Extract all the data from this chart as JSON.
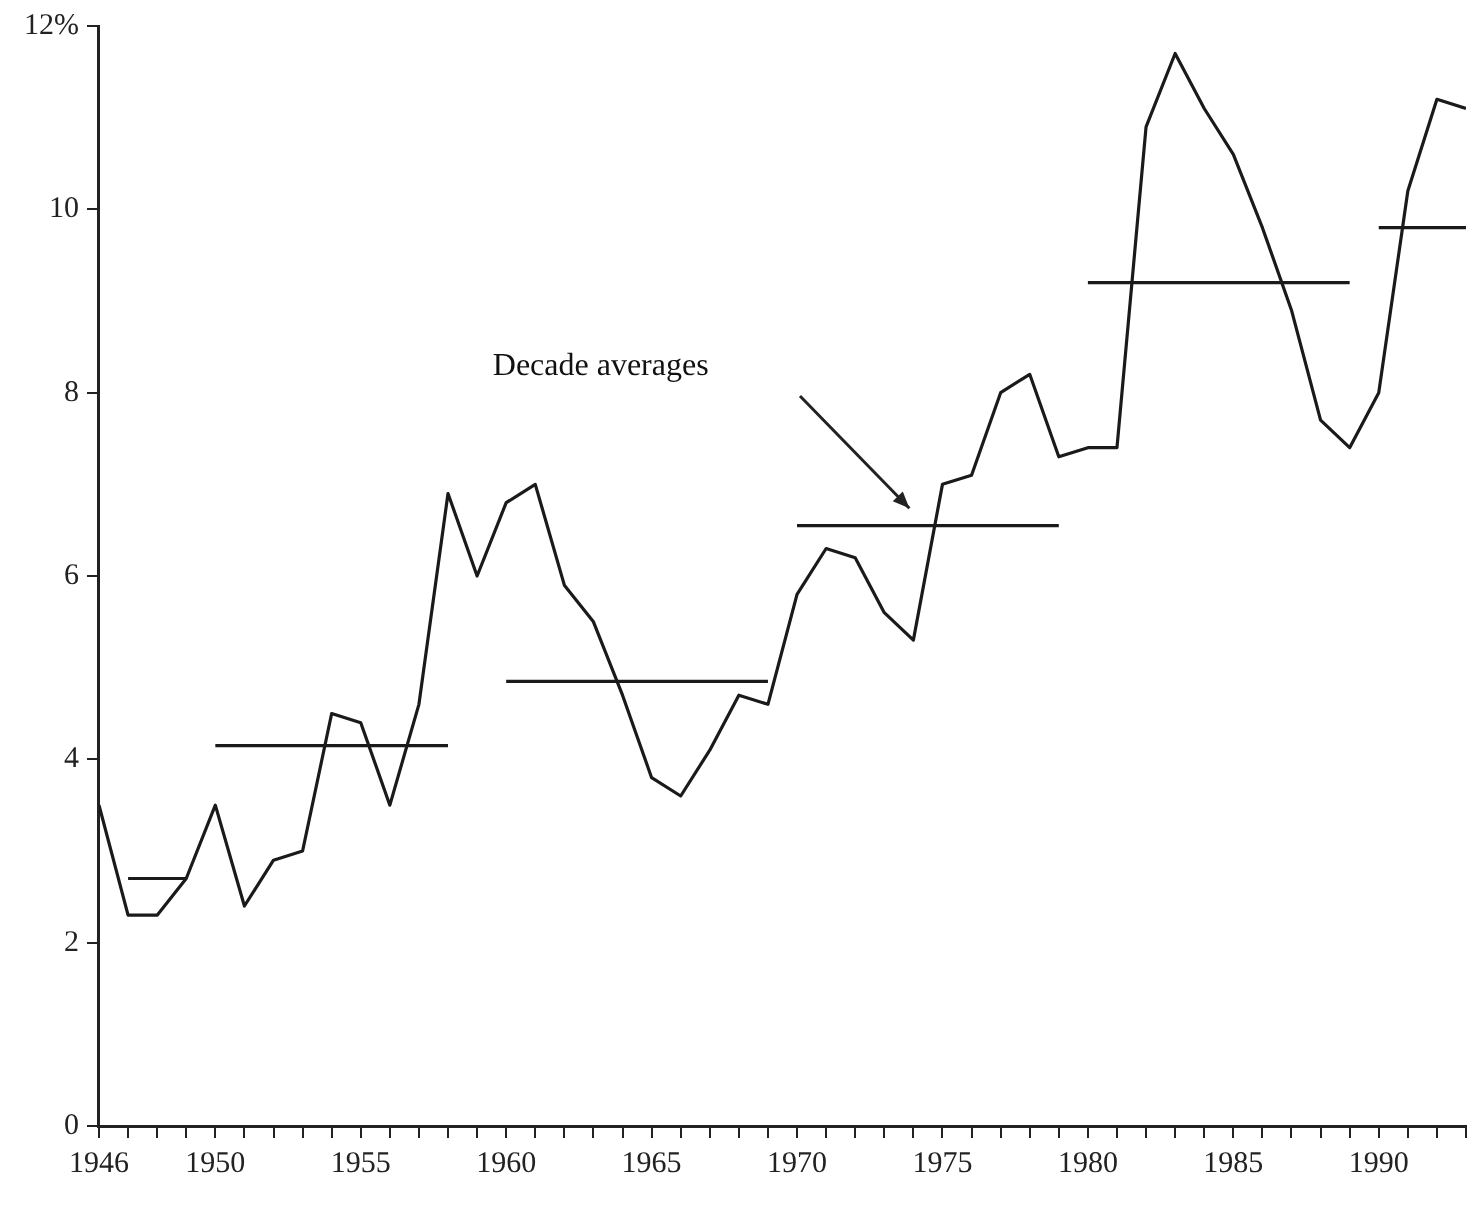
{
  "chart_data": {
    "type": "line",
    "x": [
      1946,
      1947,
      1948,
      1949,
      1950,
      1951,
      1952,
      1953,
      1954,
      1955,
      1956,
      1957,
      1958,
      1959,
      1960,
      1961,
      1962,
      1963,
      1964,
      1965,
      1966,
      1967,
      1968,
      1969,
      1970,
      1971,
      1972,
      1973,
      1974,
      1975,
      1976,
      1977,
      1978,
      1979,
      1980,
      1981,
      1982,
      1983,
      1984,
      1985,
      1986,
      1987,
      1988,
      1989,
      1990,
      1991,
      1992,
      1993
    ],
    "series": [
      {
        "color": "#1a1a1a",
        "values": [
          3.5,
          2.3,
          2.3,
          2.7,
          3.5,
          2.4,
          2.9,
          3.0,
          4.5,
          4.4,
          3.5,
          4.6,
          6.9,
          6.0,
          6.8,
          7.0,
          5.9,
          5.5,
          4.7,
          3.8,
          3.6,
          4.1,
          4.7,
          4.6,
          5.8,
          6.3,
          6.2,
          5.6,
          5.3,
          7.0,
          7.1,
          8.0,
          8.2,
          7.3,
          7.4,
          7.4,
          10.9,
          11.7,
          11.1,
          10.6,
          9.8,
          8.9,
          7.7,
          7.4,
          8.0,
          10.2,
          11.2,
          11.1
        ]
      },
      {
        "color": "#1a1a1a",
        "x": [
          1947,
          1949,
          1949.5,
          1950,
          1958,
          1959,
          1960,
          1969,
          1969.5,
          1970,
          1979,
          1979.5,
          1980,
          1989,
          1989.5,
          1990,
          1993
        ],
        "values": [
          2.7,
          2.7,
          null,
          4.15,
          4.15,
          null,
          4.85,
          4.85,
          null,
          6.55,
          6.55,
          null,
          9.2,
          9.2,
          null,
          9.8,
          9.8
        ]
      }
    ],
    "xlim": [
      1946,
      1993
    ],
    "xticks": [
      1946,
      {
        "value": 1947,
        "label": null
      },
      {
        "value": 1948,
        "label": null
      },
      {
        "value": 1949,
        "label": null
      },
      1950,
      {
        "value": 1951,
        "label": null
      },
      {
        "value": 1952,
        "label": null
      },
      {
        "value": 1953,
        "label": null
      },
      {
        "value": 1954,
        "label": null
      },
      1955,
      {
        "value": 1956,
        "label": null
      },
      {
        "value": 1957,
        "label": null
      },
      {
        "value": 1958,
        "label": null
      },
      {
        "value": 1959,
        "label": null
      },
      1960,
      {
        "value": 1961,
        "label": null
      },
      {
        "value": 1962,
        "label": null
      },
      {
        "value": 1963,
        "label": null
      },
      {
        "value": 1964,
        "label": null
      },
      1965,
      {
        "value": 1966,
        "label": null
      },
      {
        "value": 1967,
        "label": null
      },
      {
        "value": 1968,
        "label": null
      },
      {
        "value": 1969,
        "label": null
      },
      1970,
      {
        "value": 1971,
        "label": null
      },
      {
        "value": 1972,
        "label": null
      },
      {
        "value": 1973,
        "label": null
      },
      {
        "value": 1974,
        "label": null
      },
      1975,
      {
        "value": 1976,
        "label": null
      },
      {
        "value": 1977,
        "label": null
      },
      {
        "value": 1978,
        "label": null
      },
      {
        "value": 1979,
        "label": null
      },
      1980,
      {
        "value": 1981,
        "label": null
      },
      {
        "value": 1982,
        "label": null
      },
      {
        "value": 1983,
        "label": null
      },
      {
        "value": 1984,
        "label": null
      },
      1985,
      {
        "value": 1986,
        "label": null
      },
      {
        "value": 1987,
        "label": null
      },
      {
        "value": 1988,
        "label": null
      },
      {
        "value": 1989,
        "label": null
      },
      1990,
      {
        "value": 1991,
        "label": null
      },
      {
        "value": 1992,
        "label": null
      },
      {
        "value": 1993,
        "label": null
      }
    ],
    "ylim": [
      0,
      12
    ],
    "yticks": [
      0,
      2,
      4,
      6,
      8,
      10,
      {
        "value": 12,
        "label": "12%"
      }
    ],
    "annotations": [
      "Decade averages"
    ],
    "grid": false,
    "legend": false,
    "marker": "none",
    "line_style": "solid"
  }
}
